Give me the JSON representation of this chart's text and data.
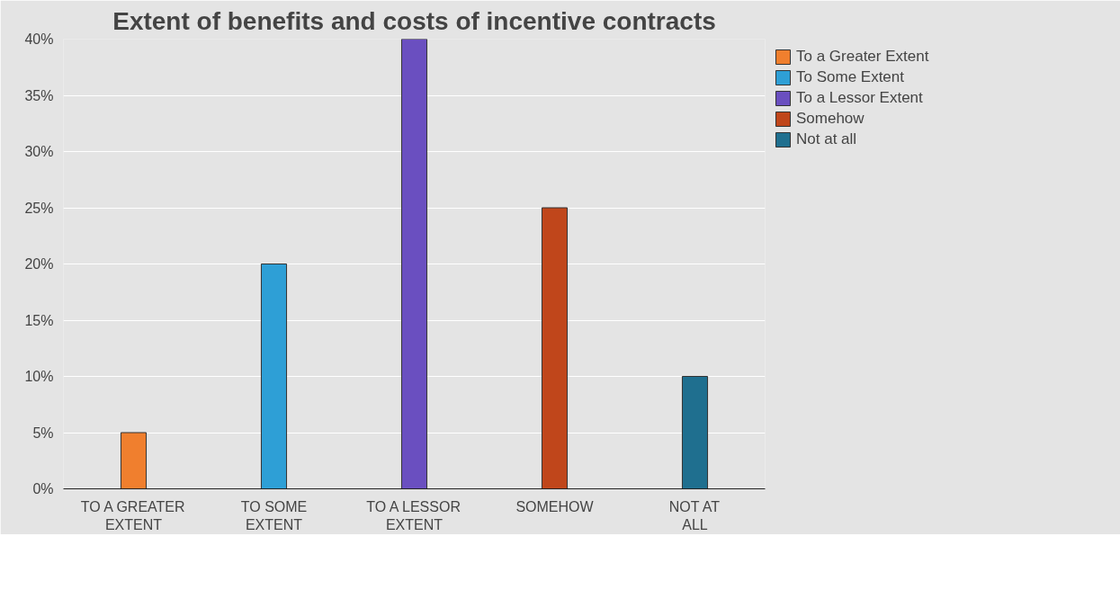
{
  "chart_data": {
    "type": "bar",
    "title": "Extent of benefits and costs of incentive contracts",
    "categories": [
      "TO A GREATER EXTENT",
      "TO SOME EXTENT",
      "TO A LESSOR EXTENT",
      "SOMEHOW",
      "NOT AT ALL"
    ],
    "series": [
      {
        "name": "To a Greater Extent",
        "color": "#f07f2e",
        "values": [
          5,
          null,
          null,
          null,
          null
        ]
      },
      {
        "name": "To Some Extent",
        "color": "#2e9fd6",
        "values": [
          null,
          20,
          null,
          null,
          null
        ]
      },
      {
        "name": "To a Lessor Extent",
        "color": "#6a4fc0",
        "values": [
          null,
          null,
          40,
          null,
          null
        ]
      },
      {
        "name": "Somehow",
        "color": "#c0461b",
        "values": [
          null,
          null,
          null,
          25,
          null
        ]
      },
      {
        "name": "Not at all",
        "color": "#1f6f8f",
        "values": [
          null,
          null,
          null,
          null,
          10
        ]
      }
    ],
    "ylim": [
      0,
      40
    ],
    "yticks": [
      {
        "value": 0,
        "label": "0%"
      },
      {
        "value": 5,
        "label": "5%"
      },
      {
        "value": 10,
        "label": "10%"
      },
      {
        "value": 15,
        "label": "15%"
      },
      {
        "value": 20,
        "label": "20%"
      },
      {
        "value": 25,
        "label": "25%"
      },
      {
        "value": 30,
        "label": "30%"
      },
      {
        "value": 35,
        "label": "35%"
      },
      {
        "value": 40,
        "label": "40%"
      }
    ],
    "grid": "y",
    "legend": "right"
  }
}
